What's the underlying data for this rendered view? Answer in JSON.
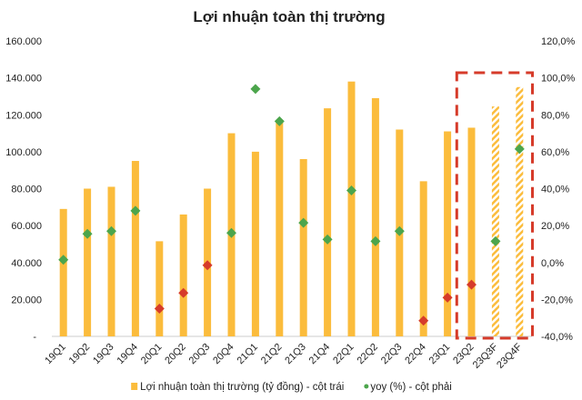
{
  "chart_data": {
    "type": "bar+scatter",
    "title": "Lợi nhuận toàn thị trường",
    "categories": [
      "19Q1",
      "19Q2",
      "19Q3",
      "19Q4",
      "20Q1",
      "20Q2",
      "20Q3",
      "20Q4",
      "21Q1",
      "21Q2",
      "21Q3",
      "21Q4",
      "22Q1",
      "22Q2",
      "22Q3",
      "22Q4",
      "23Q1",
      "23Q2",
      "23Q3F",
      "23Q4F"
    ],
    "series": [
      {
        "name": "Lợi nhuận toàn thị trường (tỷ đồng) - cột trái",
        "type": "bar",
        "axis": "left",
        "values": [
          69000,
          80000,
          81000,
          95000,
          51500,
          66000,
          80000,
          110000,
          100000,
          117000,
          96000,
          123500,
          138000,
          129000,
          112000,
          84000,
          111000,
          113000,
          124500,
          135000
        ],
        "forecast": [
          false,
          false,
          false,
          false,
          false,
          false,
          false,
          false,
          false,
          false,
          false,
          false,
          false,
          false,
          false,
          false,
          false,
          false,
          true,
          true
        ]
      },
      {
        "name": "yoy (%) - cột phải",
        "type": "scatter",
        "axis": "right",
        "values": [
          1.5,
          15.5,
          17,
          28,
          -25,
          -16.5,
          -1.5,
          16,
          94,
          76.5,
          21.5,
          12.5,
          39,
          11.5,
          17,
          -31.5,
          -19,
          -12,
          11.5,
          61.5
        ]
      }
    ],
    "left_axis": {
      "ylim": [
        0,
        160000
      ],
      "ticks": [
        "-",
        "20.000",
        "40.000",
        "60.000",
        "80.000",
        "100.000",
        "120.000",
        "140.000",
        "160.000"
      ]
    },
    "right_axis": {
      "ylim": [
        -40,
        120
      ],
      "ticks": [
        "-40,0%",
        "-20,0%",
        "0,0%",
        "20,0%",
        "40,0%",
        "60,0%",
        "80,0%",
        "100,0%",
        "120,0%"
      ]
    },
    "highlight_categories": [
      "23Q2",
      "23Q3F",
      "23Q4F"
    ],
    "legend_position": "bottom",
    "grid": false,
    "colors": {
      "bar": "#FBBC3C",
      "positive": "#4CA54C",
      "negative": "#D63B2A",
      "highlight_box": "#D63B2A"
    }
  }
}
